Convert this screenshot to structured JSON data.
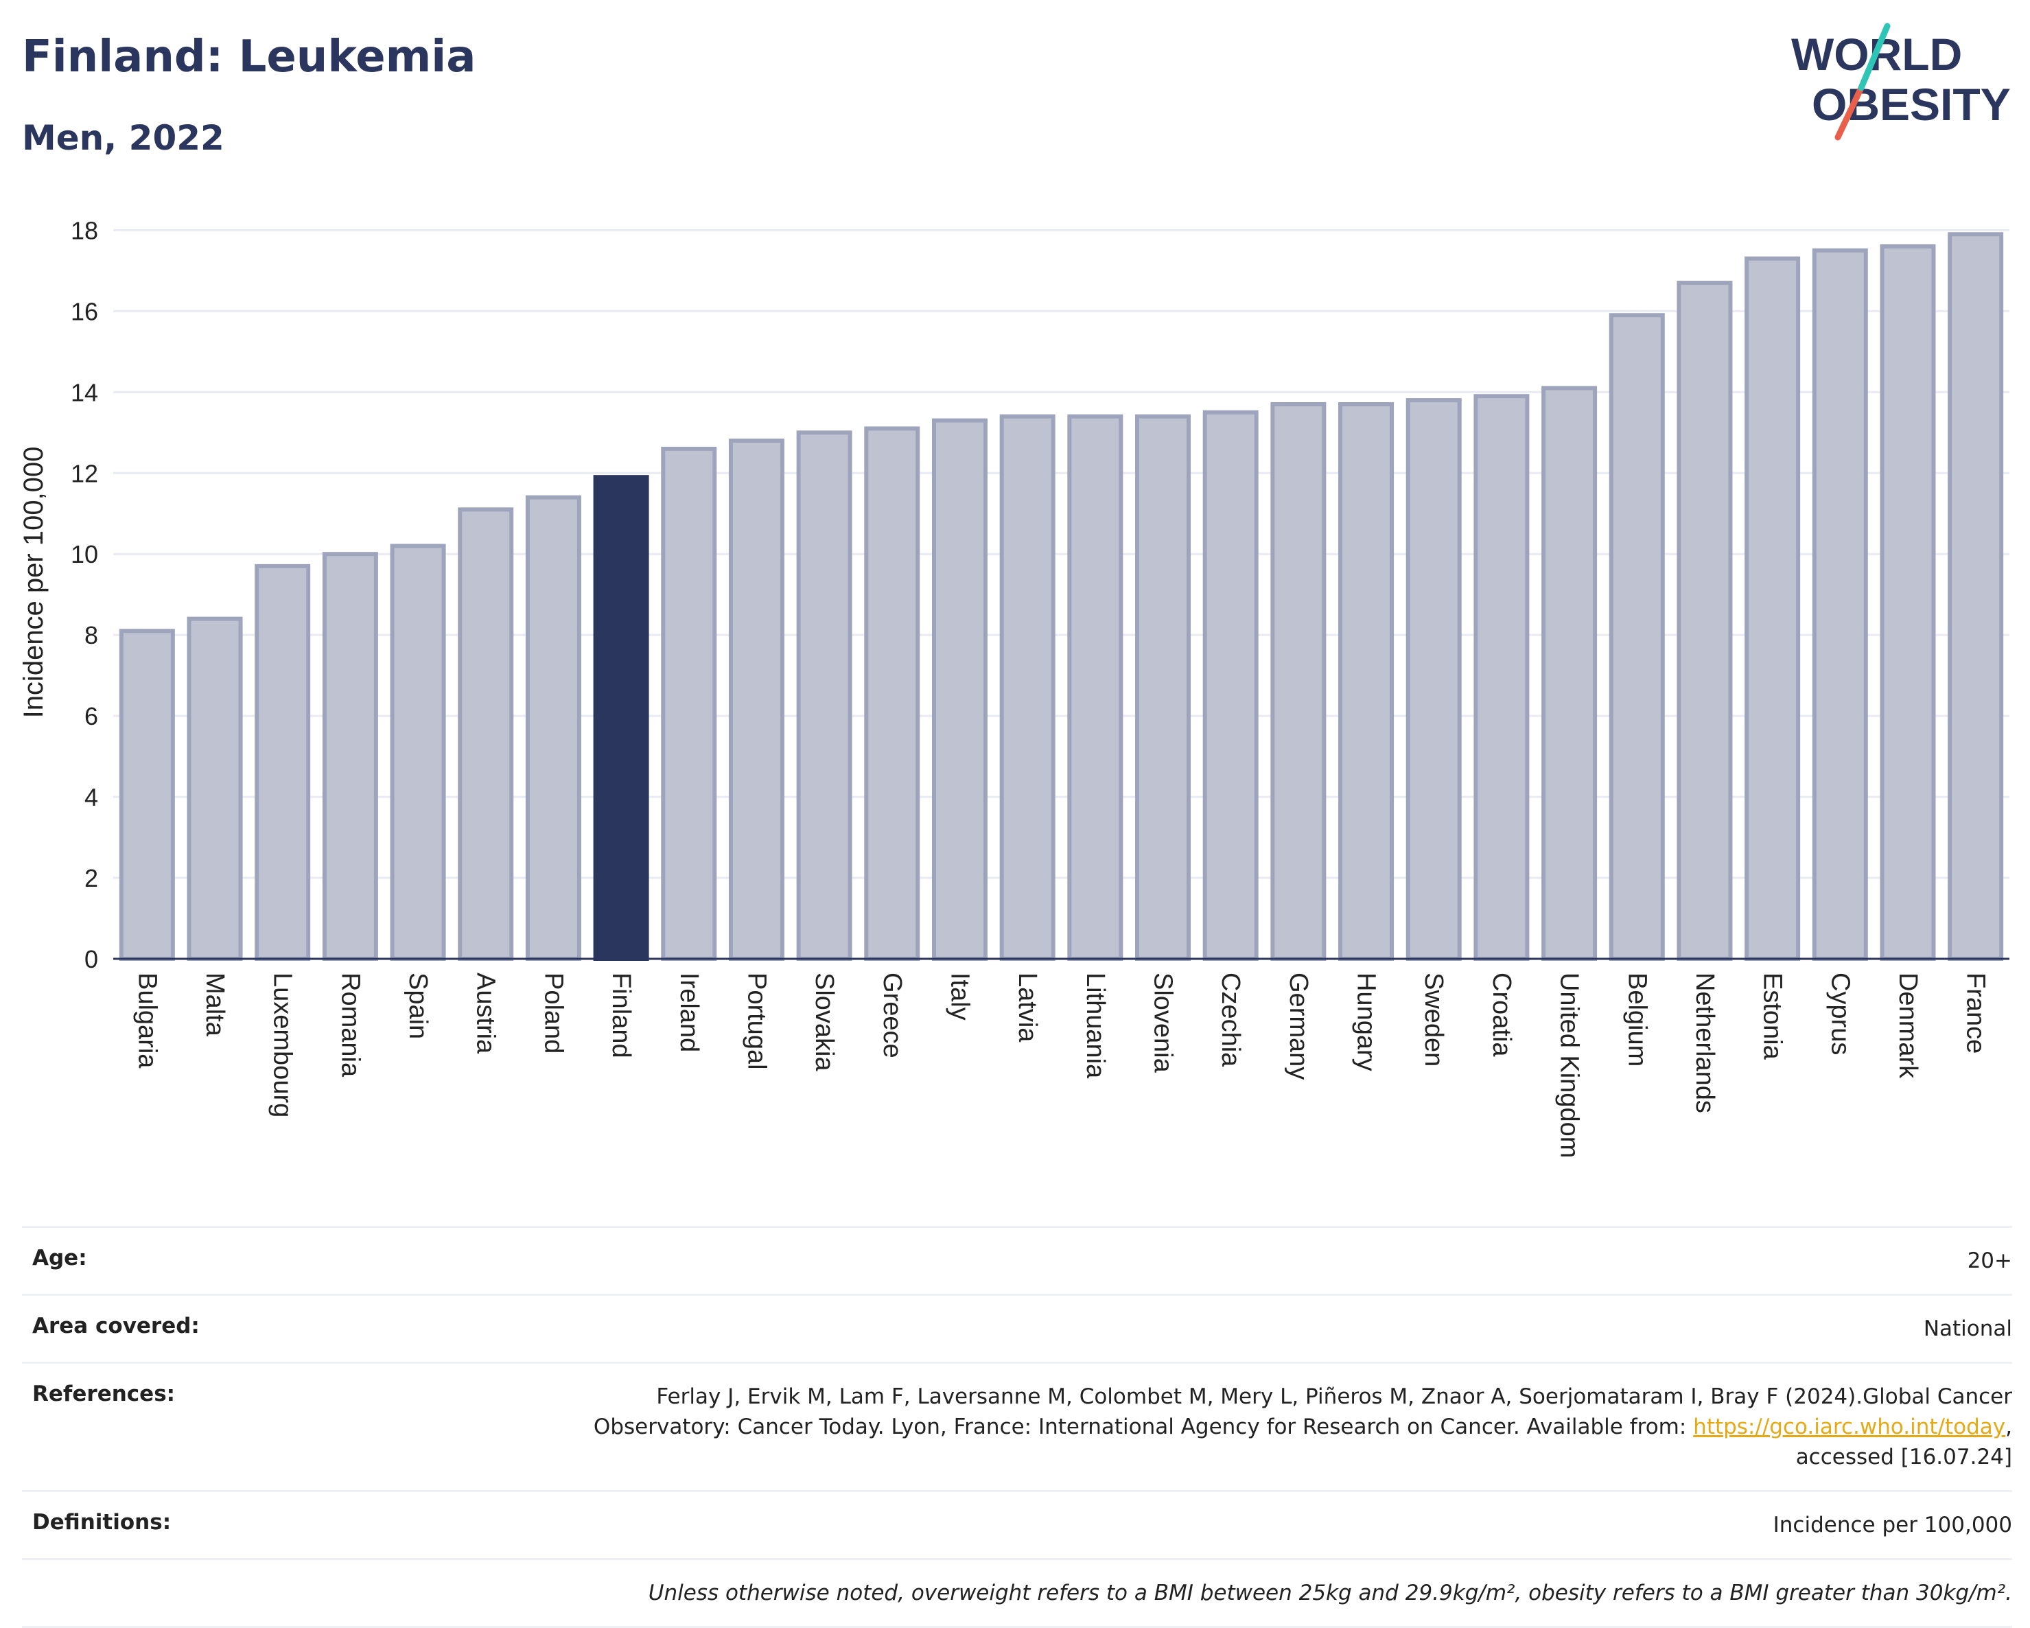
{
  "header": {
    "title": "Finland: Leukemia",
    "subtitle": "Men, 2022"
  },
  "logo": {
    "line1": "WORLD",
    "line2": "OBESITY",
    "accent_colors": [
      "#2ec4b6",
      "#e8604c"
    ],
    "text_color": "#2b365f"
  },
  "chart_data": {
    "type": "bar",
    "ylabel": "Incidence per 100,000",
    "xlabel": "",
    "ylim": [
      0,
      18.6
    ],
    "yticks": [
      0,
      2,
      4,
      6,
      8,
      10,
      12,
      14,
      16,
      18
    ],
    "grid": true,
    "highlight": "Finland",
    "colors": {
      "bar": "#bfc3d1",
      "bar_border": "#9ea4bb",
      "highlight": "#2b365f"
    },
    "categories": [
      "Bulgaria",
      "Malta",
      "Luxembourg",
      "Romania",
      "Spain",
      "Austria",
      "Poland",
      "Finland",
      "Ireland",
      "Portugal",
      "Slovakia",
      "Greece",
      "Italy",
      "Latvia",
      "Lithuania",
      "Slovenia",
      "Czechia",
      "Germany",
      "Hungary",
      "Sweden",
      "Croatia",
      "United Kingdom",
      "Belgium",
      "Netherlands",
      "Estonia",
      "Cyprus",
      "Denmark",
      "France"
    ],
    "values": [
      8.1,
      8.4,
      9.7,
      10.0,
      10.2,
      11.1,
      11.4,
      11.9,
      12.6,
      12.8,
      13.0,
      13.1,
      13.3,
      13.4,
      13.4,
      13.4,
      13.5,
      13.7,
      13.7,
      13.8,
      13.9,
      14.1,
      15.9,
      16.7,
      17.3,
      17.5,
      17.6,
      17.9
    ]
  },
  "info": {
    "age_label": "Age:",
    "age_value": "20+",
    "area_label": "Area covered:",
    "area_value": "National",
    "references_label": "References:",
    "references_text_1": "Ferlay J, Ervik M, Lam F, Laversanne M, Colombet M, Mery L, Piñeros M, Znaor A, Soerjomataram I, Bray F (2024).Global Cancer",
    "references_text_2": "Observatory: Cancer Today. Lyon, France: International Agency for Research on Cancer. Available from: ",
    "references_link": "https://gco.iarc.who.int/today",
    "references_text_3": ",",
    "references_text_4": "accessed [16.07.24]",
    "definitions_label": "Definitions:",
    "definitions_value": "Incidence per 100,000",
    "note": "Unless otherwise noted, overweight refers to a BMI between 25kg and 29.9kg/m², obesity refers to a BMI greater than 30kg/m²."
  }
}
